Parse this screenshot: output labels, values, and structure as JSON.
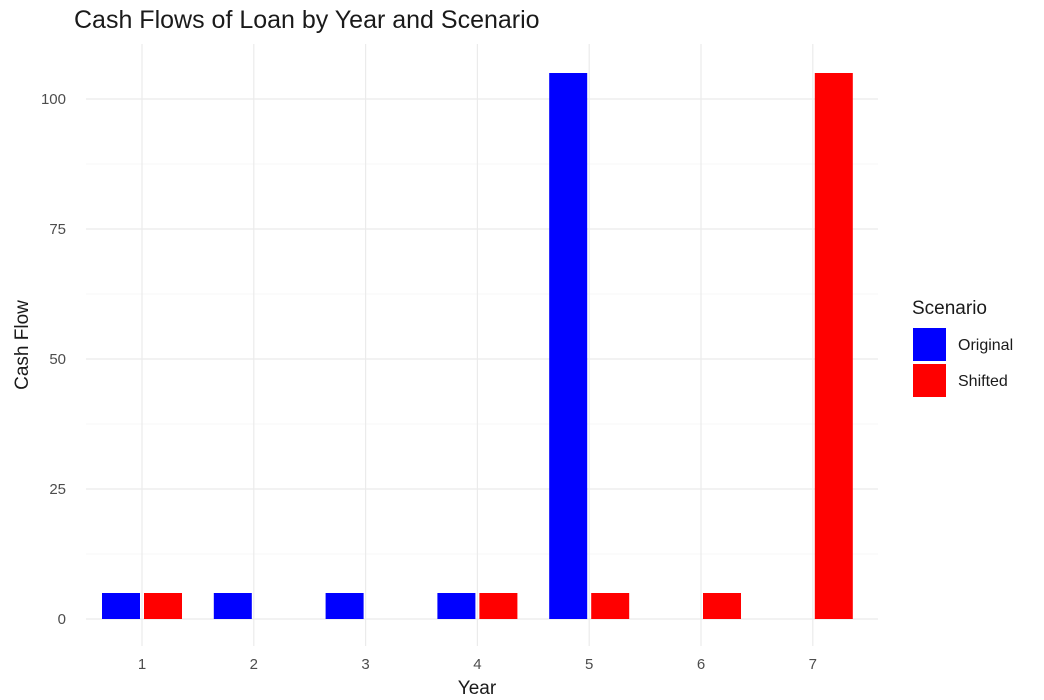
{
  "chart_data": {
    "type": "bar",
    "title": "Cash Flows of Loan by Year and Scenario",
    "xlabel": "Year",
    "ylabel": "Cash Flow",
    "categories": [
      "1",
      "2",
      "3",
      "4",
      "5",
      "6",
      "7"
    ],
    "series": [
      {
        "name": "Original",
        "color": "#0000ff",
        "values": [
          5,
          5,
          5,
          5,
          105,
          null,
          null
        ]
      },
      {
        "name": "Shifted",
        "color": "#ff0000",
        "values": [
          5,
          null,
          null,
          5,
          5,
          5,
          105
        ]
      }
    ],
    "ylim": [
      0,
      105
    ],
    "yticks": [
      0,
      25,
      50,
      75,
      100
    ],
    "grid": true,
    "legend": {
      "title": "Scenario",
      "placement": "right"
    }
  }
}
